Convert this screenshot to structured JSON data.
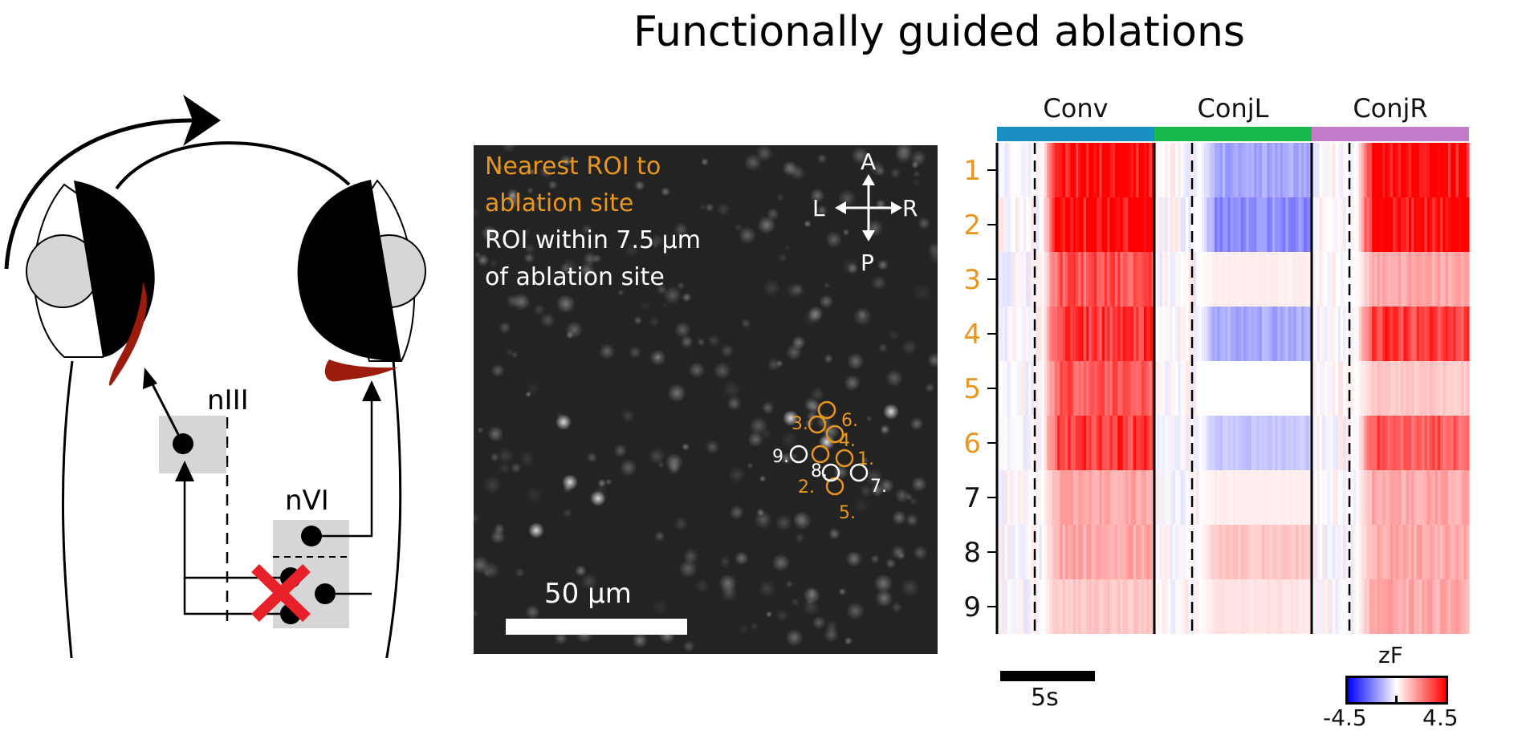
{
  "title": "Functionally guided ablations",
  "schematic": {
    "label_nIII": "nIII",
    "label_nVI": "nVI",
    "icons": [
      "rotation-arrow-icon",
      "ablation-cross-icon"
    ]
  },
  "image_panel": {
    "legend_orange": [
      "Nearest ROI to",
      "ablation site"
    ],
    "legend_white": [
      "ROI within 7.5 µm",
      "of ablation site"
    ],
    "compass": {
      "a": "A",
      "p": "P",
      "l": "L",
      "r": "R"
    },
    "scalebar_label": "50 µm",
    "roi_labels": [
      "1.",
      "2.",
      "3.",
      "4.",
      "5.",
      "6.",
      "7.",
      "8.",
      "9."
    ]
  },
  "heatmap": {
    "groups": [
      "Conv",
      "ConjL",
      "ConjR"
    ],
    "group_colors": [
      "#1a8fc4",
      "#17b84d",
      "#c47cc8"
    ],
    "row_labels": [
      "1",
      "2",
      "3",
      "4",
      "5",
      "6",
      "7",
      "8",
      "9"
    ],
    "orange_rows": 6,
    "time_scale_label": "5s",
    "colorbar": {
      "title": "zF",
      "min_label": "-4.5",
      "max_label": "4.5"
    },
    "colors": {
      "accent_orange": "#e8961e",
      "positive": "#ff0000",
      "negative": "#0000ff"
    }
  },
  "chart_data": {
    "type": "heatmap",
    "columns": [
      "Conv",
      "ConjL",
      "ConjR"
    ],
    "rows": [
      "1",
      "2",
      "3",
      "4",
      "5",
      "6",
      "7",
      "8",
      "9"
    ],
    "values": [
      [
        4.5,
        -1.5,
        4.5
      ],
      [
        4.5,
        -2.0,
        4.5
      ],
      [
        3.0,
        0.3,
        1.5
      ],
      [
        3.5,
        -1.5,
        3.5
      ],
      [
        3.0,
        0.0,
        1.0
      ],
      [
        3.5,
        -1.0,
        3.0
      ],
      [
        1.5,
        0.3,
        1.5
      ],
      [
        1.5,
        1.0,
        1.5
      ],
      [
        1.0,
        0.5,
        1.5
      ]
    ],
    "clim": [
      -4.5,
      4.5
    ],
    "colorbar_label": "zF"
  }
}
